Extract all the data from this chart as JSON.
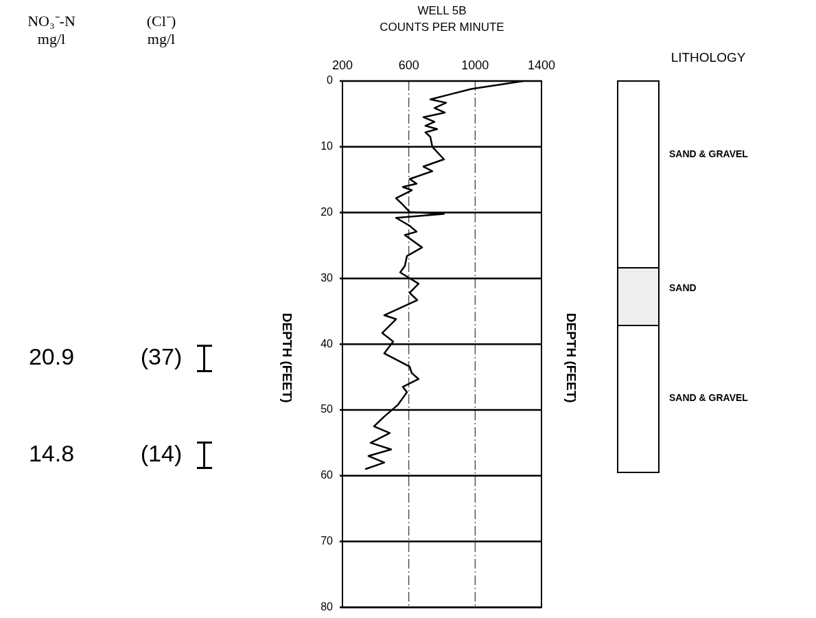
{
  "chart_data": {
    "type": "line",
    "title": "WELL 5B",
    "xlabel": "COUNTS PER MINUTE",
    "ylabel": "DEPTH (FEET)",
    "y2label": "DEPTH (FEET)",
    "series": [
      {
        "color": "#000000",
        "x": [
          1292,
          978,
          837,
          730,
          825,
          755,
          817,
          688,
          755,
          700,
          771,
          700,
          730,
          742,
          812,
          688,
          742,
          605,
          647,
          564,
          618,
          523,
          564,
          605,
          812,
          523,
          605,
          647,
          576,
          680,
          589,
          576,
          548,
          659,
          605,
          651,
          452,
          523,
          440,
          506,
          452,
          605,
          618,
          659,
          564,
          589,
          535,
          452,
          390,
          485,
          370,
          494,
          357,
          452,
          337
        ],
        "values": [
          0,
          1.2,
          2.1,
          2.8,
          3.3,
          4.1,
          4.8,
          5.5,
          6.2,
          6.8,
          7.3,
          7.8,
          8.5,
          10,
          11.9,
          13,
          13.7,
          14.9,
          15.6,
          16.1,
          16.6,
          17.8,
          18.8,
          19.9,
          20.2,
          20.8,
          22,
          22.9,
          23.4,
          25.3,
          26.6,
          28.1,
          29.1,
          30.8,
          32.2,
          33.3,
          35.6,
          36.2,
          38.3,
          39.6,
          41.4,
          43.4,
          44.4,
          45.3,
          46.5,
          47.3,
          49.2,
          51,
          52.5,
          53.5,
          55,
          56,
          57,
          58,
          59
        ]
      }
    ],
    "xlim": [
      200,
      1400
    ],
    "xticks": [
      200,
      600,
      1000,
      1400
    ],
    "ylim": [
      80,
      0
    ],
    "yticks": [
      0,
      10,
      20,
      30,
      40,
      50,
      60,
      70,
      80
    ],
    "grid": true,
    "legend": false,
    "marker": "none",
    "line_style": "solid",
    "annotations": [
      "NO₃⁻-N\nmg/l",
      "(Cl⁻)\nmg/l",
      "LITHOLOGY",
      "SAND & GRAVEL",
      "SAND",
      "SAND & GRAVEL",
      "20.9",
      "(37)",
      "14.8",
      "(14)"
    ]
  }
}
